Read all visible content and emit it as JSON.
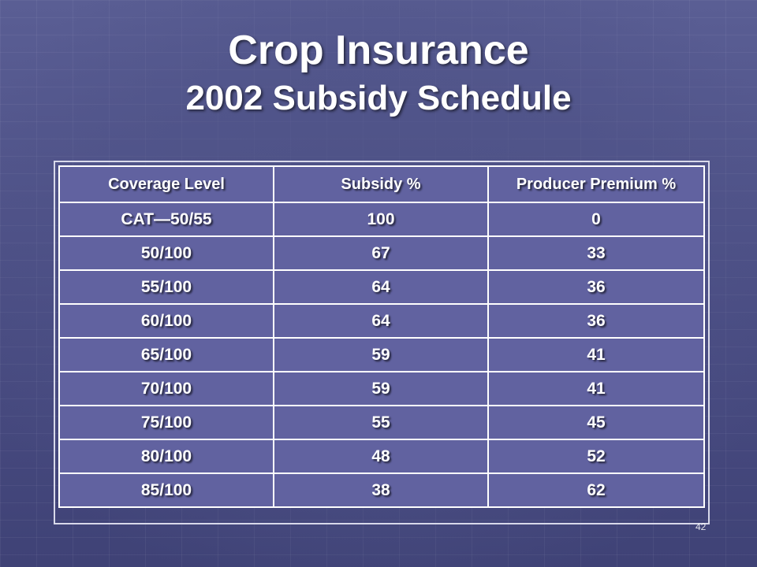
{
  "slide": {
    "title_line1": "Crop Insurance",
    "title_line2": "2002 Subsidy Schedule",
    "page_number": "42"
  },
  "table": {
    "headers": [
      "Coverage Level",
      "Subsidy %",
      "Producer Premium %"
    ],
    "rows": [
      [
        "CAT—50/55",
        "100",
        "0"
      ],
      [
        "50/100",
        "67",
        "33"
      ],
      [
        "55/100",
        "64",
        "36"
      ],
      [
        "60/100",
        "64",
        "36"
      ],
      [
        "65/100",
        "59",
        "41"
      ],
      [
        "70/100",
        "59",
        "41"
      ],
      [
        "75/100",
        "55",
        "45"
      ],
      [
        "80/100",
        "48",
        "52"
      ],
      [
        "85/100",
        "38",
        "62"
      ]
    ]
  }
}
